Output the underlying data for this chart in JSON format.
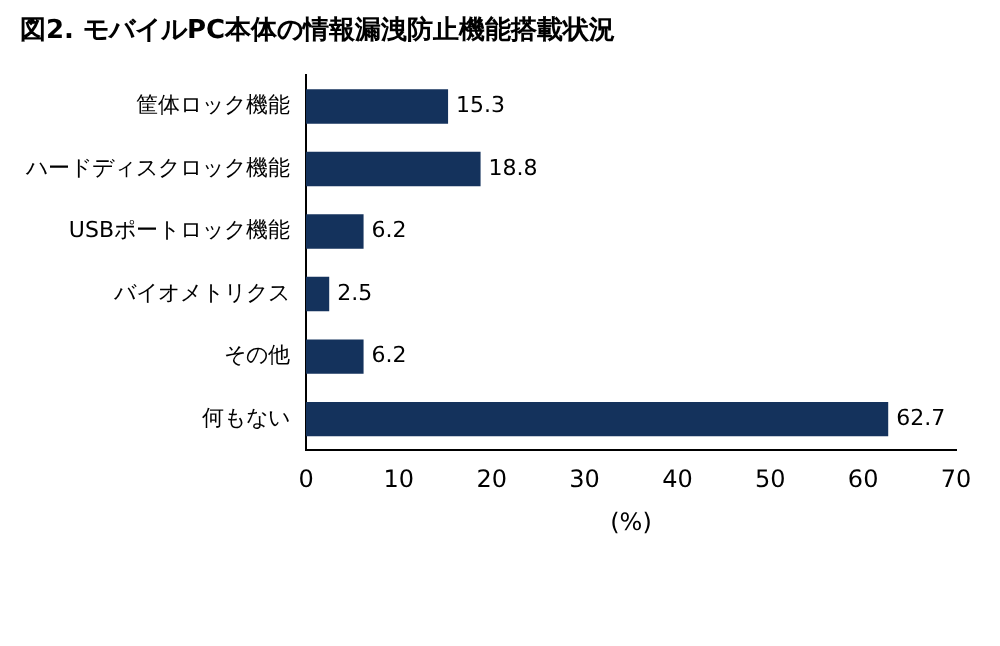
{
  "chart_data": {
    "type": "bar",
    "orientation": "horizontal",
    "title": "図2. モバイルPC本体の情報漏洩防止機能搭載状況",
    "categories": [
      "筐体ロック機能",
      "ハードディスクロック機能",
      "USBポートロック機能",
      "バイオメトリクス",
      "その他",
      "何もない"
    ],
    "values": [
      15.3,
      18.8,
      6.2,
      2.5,
      6.2,
      62.7
    ],
    "color": "#14325c",
    "xlim": [
      0,
      70
    ],
    "xticks": [
      0,
      10,
      20,
      30,
      40,
      50,
      60,
      70
    ],
    "xlabel": "(%)",
    "data_labels": true,
    "grid": false,
    "legend": false
  }
}
